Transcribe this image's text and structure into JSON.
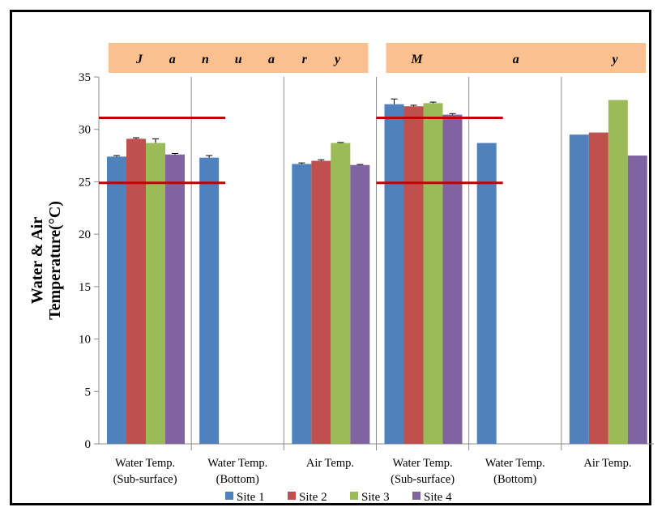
{
  "colors": {
    "site1": "#4F81BD",
    "site2": "#C0504D",
    "site3": "#9BBB59",
    "site4": "#8064A2",
    "month_band": "#FAC090",
    "threshold": "#C00000"
  },
  "chart_data": {
    "type": "bar",
    "title": "",
    "ylabel": "Water & Air Temperature(°C)",
    "ylabel_lines": [
      "Water & Air",
      "Temperature(°C)"
    ],
    "ylim": [
      0,
      35
    ],
    "yticks": [
      0,
      5,
      10,
      15,
      20,
      25,
      30,
      35
    ],
    "grid": false,
    "legend_position": "bottom",
    "months": [
      {
        "label": "January",
        "letters": [
          "J",
          "a",
          "n",
          "u",
          "a",
          "r",
          "y"
        ]
      },
      {
        "label": "May",
        "letters": [
          "M",
          "a",
          "y"
        ]
      }
    ],
    "categories": [
      {
        "line1": "Water Temp.",
        "line2": "(Sub-surface)",
        "month": "January"
      },
      {
        "line1": "Water Temp.",
        "line2": "(Bottom)",
        "month": "January"
      },
      {
        "line1": "Air Temp.",
        "line2": "",
        "month": "January"
      },
      {
        "line1": "Water Temp.",
        "line2": "(Sub-surface)",
        "month": "May"
      },
      {
        "line1": "Water Temp.",
        "line2": "(Bottom)",
        "month": "May"
      },
      {
        "line1": "Air Temp.",
        "line2": "",
        "month": "May"
      }
    ],
    "series": [
      {
        "name": "Site 1",
        "values": [
          27.4,
          27.3,
          26.7,
          32.4,
          28.7,
          29.5
        ],
        "errors": [
          0.1,
          0.2,
          0.1,
          0.5,
          0,
          0
        ]
      },
      {
        "name": "Site 2",
        "values": [
          29.1,
          null,
          27.0,
          32.2,
          null,
          29.7
        ],
        "errors": [
          0.1,
          0,
          0.1,
          0.1,
          0,
          0
        ]
      },
      {
        "name": "Site 3",
        "values": [
          28.7,
          null,
          28.7,
          32.5,
          null,
          32.8
        ],
        "errors": [
          0.4,
          0,
          0.05,
          0.1,
          0,
          0
        ]
      },
      {
        "name": "Site 4",
        "values": [
          27.6,
          null,
          26.6,
          31.4,
          null,
          27.5
        ],
        "errors": [
          0.1,
          0,
          0.05,
          0.1,
          0,
          0
        ]
      }
    ],
    "threshold_lines": [
      {
        "y": 31.1,
        "from_category": 0,
        "to_category": 1
      },
      {
        "y": 24.9,
        "from_category": 0,
        "to_category": 1
      },
      {
        "y": 31.1,
        "from_category": 3,
        "to_category": 4
      },
      {
        "y": 24.9,
        "from_category": 3,
        "to_category": 4
      }
    ]
  }
}
